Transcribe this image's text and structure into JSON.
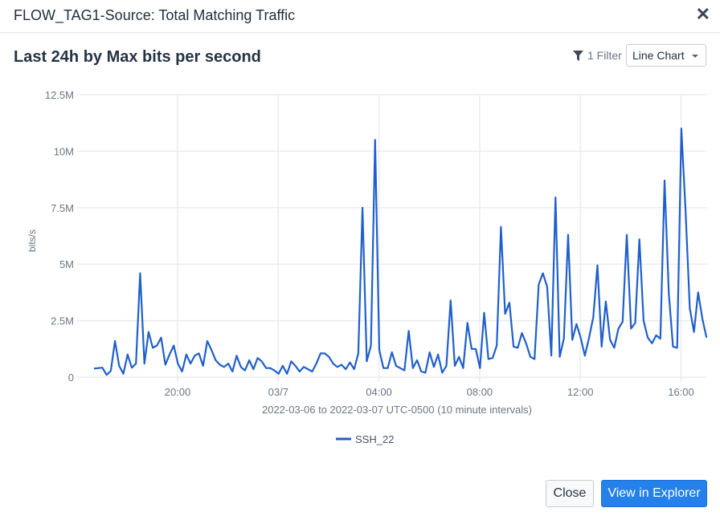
{
  "modal": {
    "title": "FLOW_TAG1-Source: Total Matching Traffic",
    "close_icon": "close-icon"
  },
  "toolbar": {
    "chart_title": "Last 24h by Max bits per second",
    "filter_icon": "filter-icon",
    "filter_label": "1 Filter",
    "chart_type_selected": "Line Chart"
  },
  "footer": {
    "close_label": "Close",
    "explorer_label": "View in Explorer"
  },
  "colors": {
    "series": "#1f5fcc",
    "grid": "#ececec",
    "primary_button": "#2480ea"
  },
  "chart_data": {
    "type": "line",
    "title": "Last 24h by Max bits per second",
    "xlabel": "2022-03-06 to 2022-03-07 UTC-0500 (10 minute intervals)",
    "ylabel": "bits/s",
    "ylim": [
      0,
      12500000
    ],
    "yticks": [
      0,
      2500000,
      5000000,
      7500000,
      10000000,
      12500000
    ],
    "ytick_labels": [
      "0",
      "2.5M",
      "5M",
      "7.5M",
      "10M",
      "12.5M"
    ],
    "xtick_labels": [
      "20:00",
      "03/7",
      "04:00",
      "08:00",
      "12:00",
      "16:00"
    ],
    "xtick_minutes": [
      200,
      440,
      680,
      920,
      1160,
      1400
    ],
    "x_start_label": "2022-03-06 16:40",
    "interval_minutes": 10,
    "grid": true,
    "legend_position": "bottom-center",
    "series": [
      {
        "name": "SSH_22",
        "values": [
          0.38,
          0.4,
          0.42,
          0.1,
          0.28,
          1.6,
          0.5,
          0.15,
          1.0,
          0.42,
          0.6,
          4.6,
          0.6,
          2.0,
          1.3,
          1.4,
          1.75,
          0.55,
          1.0,
          1.4,
          0.6,
          0.25,
          1.0,
          0.6,
          0.95,
          1.05,
          0.5,
          1.6,
          1.2,
          0.75,
          0.55,
          0.45,
          0.6,
          0.25,
          0.95,
          0.45,
          0.3,
          0.75,
          0.35,
          0.85,
          0.7,
          0.4,
          0.4,
          0.3,
          0.15,
          0.5,
          0.15,
          0.7,
          0.5,
          0.25,
          0.45,
          0.35,
          0.25,
          0.6,
          1.05,
          1.05,
          0.9,
          0.6,
          0.45,
          0.55,
          0.35,
          0.65,
          0.35,
          1.05,
          7.5,
          0.7,
          1.4,
          10.5,
          1.2,
          0.4,
          0.4,
          1.1,
          0.5,
          0.4,
          0.3,
          2.05,
          0.4,
          0.75,
          0.25,
          0.2,
          1.1,
          0.45,
          1.0,
          0.2,
          0.5,
          3.4,
          0.5,
          0.9,
          0.4,
          2.4,
          1.25,
          1.25,
          0.4,
          2.85,
          0.8,
          0.85,
          1.4,
          6.65,
          2.8,
          3.3,
          1.35,
          1.3,
          1.95,
          1.5,
          0.9,
          0.8,
          4.1,
          4.6,
          4.0,
          0.95,
          7.95,
          0.9,
          1.7,
          6.3,
          1.65,
          2.35,
          1.75,
          0.95,
          1.75,
          2.65,
          4.95,
          1.35,
          3.35,
          1.65,
          1.3,
          2.15,
          2.45,
          6.3,
          2.15,
          2.4,
          6.1,
          2.5,
          1.75,
          1.5,
          1.85,
          1.7,
          8.7,
          3.7,
          1.35,
          1.3,
          11.0,
          7.4,
          3.05,
          2.0,
          3.75,
          2.6,
          1.75
        ]
      }
    ],
    "value_unit_multiplier": 1000000
  }
}
